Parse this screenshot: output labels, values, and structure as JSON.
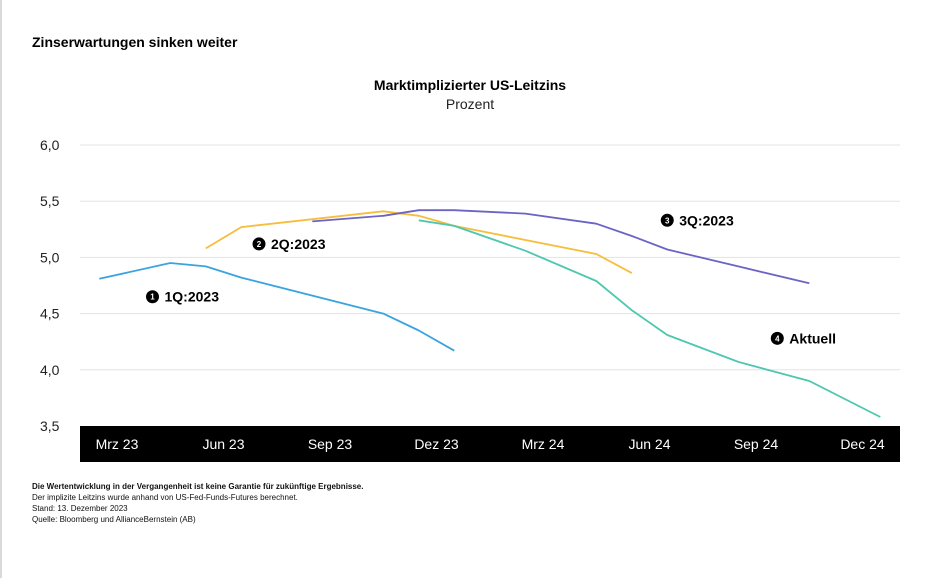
{
  "heading": "Zinserwartungen sinken weiter",
  "chart_data": {
    "type": "line",
    "title": "Marktimplizierter US-Leitzins",
    "subtitle": "Prozent",
    "xlabel": "",
    "ylabel": "Prozent",
    "ylim": [
      3.5,
      6.0
    ],
    "yticks": [
      3.5,
      4.0,
      4.5,
      5.0,
      5.5,
      6.0
    ],
    "ytick_labels": [
      "3,5",
      "4,0",
      "4,5",
      "5,0",
      "5,5",
      "6,0"
    ],
    "x_unit": "months since Mrz 23",
    "xlim": [
      -1,
      22
    ],
    "xticks": [
      0,
      3,
      6,
      9,
      12,
      15,
      18,
      21
    ],
    "xtick_labels": [
      "Mrz 23",
      "Jun 23",
      "Sep 23",
      "Dez 23",
      "Mrz 24",
      "Jun 24",
      "Sep 24",
      "Dec 24"
    ],
    "grid": true,
    "series": [
      {
        "name": "1Q:2023",
        "marker": "1",
        "color": "#3aa3e0",
        "x": [
          -0.5,
          1.5,
          2.5,
          3.5,
          7.5,
          8.5,
          9.5
        ],
        "y": [
          4.81,
          4.95,
          4.92,
          4.82,
          4.5,
          4.35,
          4.17
        ],
        "label_at": [
          1.0,
          4.65
        ]
      },
      {
        "name": "2Q:2023",
        "marker": "2",
        "color": "#f7bd3c",
        "x": [
          2.5,
          3.5,
          7.5,
          8.5,
          9.5,
          13.5,
          14.5
        ],
        "y": [
          5.08,
          5.27,
          5.41,
          5.37,
          5.28,
          5.03,
          4.86
        ],
        "label_at": [
          4.0,
          5.12
        ]
      },
      {
        "name": "3Q:2023",
        "marker": "3",
        "color": "#6b64c4",
        "x": [
          5.5,
          7.5,
          8.5,
          9.5,
          11.5,
          13.5,
          14.5,
          15.5,
          17.5,
          19.5
        ],
        "y": [
          5.32,
          5.37,
          5.42,
          5.42,
          5.39,
          5.3,
          5.19,
          5.07,
          4.92,
          4.77
        ],
        "label_at": [
          15.5,
          5.33
        ]
      },
      {
        "name": "Aktuell",
        "marker": "4",
        "color": "#4dc7ae",
        "x": [
          8.5,
          9.5,
          11.5,
          13.5,
          14.5,
          15.5,
          17.5,
          19.5,
          21.5
        ],
        "y": [
          5.33,
          5.28,
          5.06,
          4.79,
          4.53,
          4.31,
          4.07,
          3.9,
          3.58
        ],
        "label_at": [
          18.6,
          4.28
        ]
      }
    ]
  },
  "notes": {
    "disclaimer": "Die Wertentwicklung in der Vergangenheit ist keine Garantie für zukünftige Ergebnisse.",
    "method": "Der implizite Leitzins wurde anhand von US-Fed-Funds-Futures berechnet.",
    "date": "Stand: 13. Dezember 2023",
    "source": "Quelle: Bloomberg und AllianceBernstein (AB)"
  }
}
